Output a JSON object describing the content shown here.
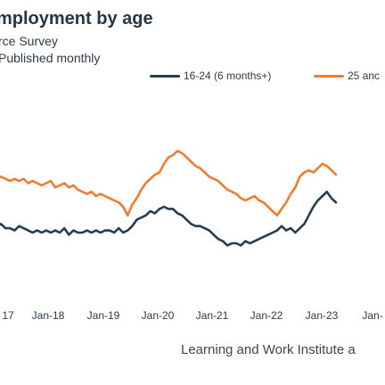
{
  "chart_data": {
    "type": "line",
    "title": "mployment by age",
    "subtitle": "rce Survey",
    "note": "Published monthly",
    "source": "Learning and Work Institute a",
    "x_ticks": [
      "17",
      "Jan-18",
      "Jan-19",
      "Jan-20",
      "Jan-21",
      "Jan-22",
      "Jan-23",
      "Jan-"
    ],
    "colors": {
      "youth": "#263e50",
      "adult": "#ee7d31"
    },
    "series": [
      {
        "name": "16-24 (6 months+)",
        "color": "#263e50",
        "x": [
          "Nov-17",
          "Dec-17",
          "Jan-18",
          "Feb-18",
          "Mar-18",
          "Apr-18",
          "May-18",
          "Jun-18",
          "Jul-18",
          "Aug-18",
          "Sep-18",
          "Oct-18",
          "Nov-18",
          "Dec-18",
          "Jan-19",
          "Feb-19",
          "Mar-19",
          "Apr-19",
          "May-19",
          "Jun-19",
          "Jul-19",
          "Aug-19",
          "Sep-19",
          "Oct-19",
          "Nov-19",
          "Dec-19",
          "Jan-20",
          "Feb-20",
          "Mar-20",
          "Apr-20",
          "May-20",
          "Jun-20",
          "Jul-20",
          "Aug-20",
          "Sep-20",
          "Oct-20",
          "Nov-20",
          "Dec-20",
          "Jan-21",
          "Feb-21",
          "Mar-21",
          "Apr-21",
          "May-21",
          "Jun-21",
          "Jul-21",
          "Aug-21",
          "Sep-21",
          "Oct-21",
          "Nov-21",
          "Dec-21",
          "Jan-22",
          "Feb-22",
          "Mar-22",
          "Apr-22",
          "May-22",
          "Jun-22",
          "Jul-22",
          "Aug-22",
          "Sep-22",
          "Oct-22",
          "Nov-22",
          "Dec-22",
          "Jan-23",
          "Feb-23",
          "Mar-23",
          "Apr-23",
          "May-23",
          "Jun-23",
          "Jul-23",
          "Aug-23",
          "Sep-23",
          "Oct-23",
          "Nov-23",
          "Dec-23",
          "Jan-24",
          "Feb-24"
        ],
        "values": [
          47,
          48,
          46,
          46,
          45,
          47,
          46,
          45,
          44,
          45,
          44,
          45,
          44,
          45,
          44,
          46,
          43,
          45,
          44,
          44,
          45,
          44,
          45,
          44,
          45,
          45,
          44,
          46,
          44,
          45,
          47,
          50,
          51,
          52,
          54,
          53,
          55,
          56,
          55,
          55,
          53,
          52,
          50,
          48,
          47,
          47,
          46,
          45,
          43,
          41,
          40,
          38,
          39,
          39,
          38,
          40,
          39,
          40,
          41,
          42,
          43,
          44,
          45,
          47,
          45,
          46,
          44,
          46,
          48,
          52,
          56,
          59,
          61,
          63,
          60,
          58
        ]
      },
      {
        "name": "25 anc",
        "color": "#ee7d31",
        "x": [
          "Nov-17",
          "Dec-17",
          "Jan-18",
          "Feb-18",
          "Mar-18",
          "Apr-18",
          "May-18",
          "Jun-18",
          "Jul-18",
          "Aug-18",
          "Sep-18",
          "Oct-18",
          "Nov-18",
          "Dec-18",
          "Jan-19",
          "Feb-19",
          "Mar-19",
          "Apr-19",
          "May-19",
          "Jun-19",
          "Jul-19",
          "Aug-19",
          "Sep-19",
          "Oct-19",
          "Nov-19",
          "Dec-19",
          "Jan-20",
          "Feb-20",
          "Mar-20",
          "Apr-20",
          "May-20",
          "Jun-20",
          "Jul-20",
          "Aug-20",
          "Sep-20",
          "Oct-20",
          "Nov-20",
          "Dec-20",
          "Jan-21",
          "Feb-21",
          "Mar-21",
          "Apr-21",
          "May-21",
          "Jun-21",
          "Jul-21",
          "Aug-21",
          "Sep-21",
          "Oct-21",
          "Nov-21",
          "Dec-21",
          "Jan-22",
          "Feb-22",
          "Mar-22",
          "Apr-22",
          "May-22",
          "Jun-22",
          "Jul-22",
          "Aug-22",
          "Sep-22",
          "Oct-22",
          "Nov-22",
          "Dec-22",
          "Jan-23",
          "Feb-23",
          "Mar-23",
          "Apr-23",
          "May-23",
          "Jun-23",
          "Jul-23",
          "Aug-23",
          "Sep-23",
          "Oct-23",
          "Nov-23",
          "Dec-23",
          "Jan-24",
          "Feb-24"
        ],
        "values": [
          69,
          70,
          69,
          68,
          69,
          68,
          69,
          67,
          68,
          67,
          66,
          67,
          68,
          65,
          66,
          67,
          65,
          66,
          64,
          63,
          62,
          63,
          61,
          62,
          61,
          60,
          59,
          58,
          56,
          52,
          57,
          60,
          64,
          67,
          69,
          71,
          72,
          76,
          79,
          80,
          82,
          81,
          79,
          77,
          75,
          74,
          72,
          70,
          69,
          68,
          66,
          64,
          63,
          62,
          60,
          59,
          60,
          61,
          59,
          58,
          56,
          54,
          52,
          55,
          58,
          62,
          65,
          70,
          72,
          73,
          72,
          74,
          76,
          75,
          73,
          71
        ]
      }
    ]
  }
}
